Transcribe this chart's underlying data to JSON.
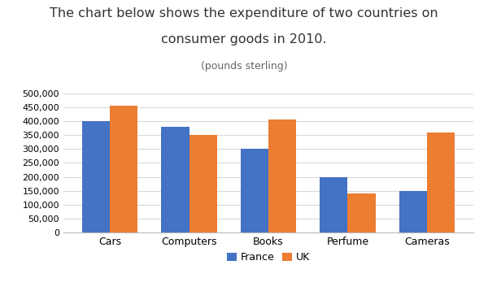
{
  "title_line1": "The chart below shows the expenditure of two countries on",
  "title_line2": "consumer goods in 2010.",
  "subtitle": "(pounds sterling)",
  "categories": [
    "Cars",
    "Computers",
    "Books",
    "Perfume",
    "Cameras"
  ],
  "france": [
    400000,
    380000,
    300000,
    200000,
    150000
  ],
  "uk": [
    455000,
    350000,
    405000,
    140000,
    360000
  ],
  "france_color": "#4472C4",
  "uk_color": "#ED7D31",
  "ylim": [
    0,
    500000
  ],
  "yticks": [
    0,
    50000,
    100000,
    150000,
    200000,
    250000,
    300000,
    350000,
    400000,
    450000,
    500000
  ],
  "legend_labels": [
    "France",
    "UK"
  ],
  "background_color": "#ffffff",
  "grid_color": "#d9d9d9",
  "title_fontsize": 11.5,
  "subtitle_fontsize": 9
}
